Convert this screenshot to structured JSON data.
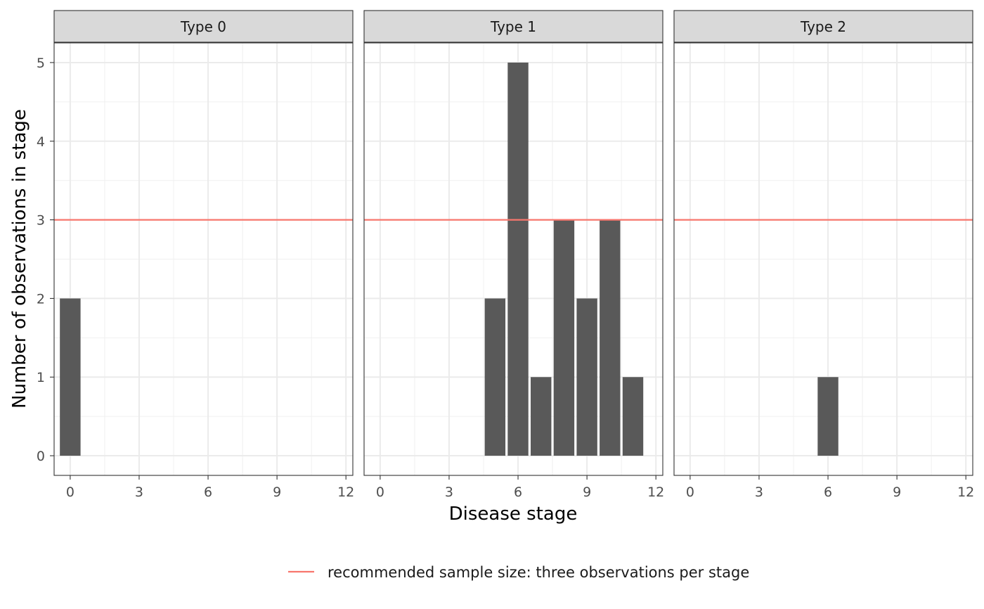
{
  "chart_data": {
    "type": "bar",
    "title": "",
    "xlabel": "Disease stage",
    "ylabel": "Number of observations in stage",
    "xlim": [
      -0.7,
      12.3
    ],
    "ylim": [
      -0.25,
      5.25
    ],
    "x_ticks": [
      0,
      3,
      6,
      9,
      12
    ],
    "y_ticks": [
      0,
      1,
      2,
      3,
      4,
      5
    ],
    "grid": true,
    "bar_color": "#595959",
    "reference_line": {
      "y": 3,
      "color": "#F8766D",
      "label": "recommended sample size: three observations per stage"
    },
    "legend_position": "bottom",
    "facets": [
      {
        "label": "Type 0",
        "bars": [
          {
            "x": 0,
            "y": 2
          }
        ]
      },
      {
        "label": "Type 1",
        "bars": [
          {
            "x": 5,
            "y": 2
          },
          {
            "x": 6,
            "y": 5
          },
          {
            "x": 7,
            "y": 1
          },
          {
            "x": 8,
            "y": 3
          },
          {
            "x": 9,
            "y": 2
          },
          {
            "x": 10,
            "y": 3
          },
          {
            "x": 11,
            "y": 1
          }
        ]
      },
      {
        "label": "Type 2",
        "bars": [
          {
            "x": 6,
            "y": 1
          }
        ]
      }
    ]
  }
}
